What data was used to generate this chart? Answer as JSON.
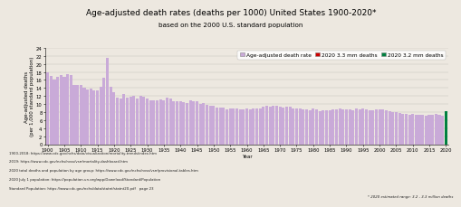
{
  "title": "Age-adjusted death rates (deaths per 1000) United States 1900-2020*",
  "subtitle": "based on the 2000 U.S. standard population",
  "xlabel": "Year",
  "ylabel": "Age-adjusted deaths\n(per 1,000 standard population)",
  "bar_color": "#c9aad8",
  "bar_color_2020_high": "#cc0000",
  "bar_color_2020_low": "#008040",
  "background_color": "#ede8e0",
  "legend_labels": [
    "Age-adjusted death rate",
    "2020 3.3 mm deaths",
    "2020 3.2 mm deaths"
  ],
  "legend_colors": [
    "#c9aad8",
    "#cc0000",
    "#008040"
  ],
  "years": [
    1900,
    1901,
    1902,
    1903,
    1904,
    1905,
    1906,
    1907,
    1908,
    1909,
    1910,
    1911,
    1912,
    1913,
    1914,
    1915,
    1916,
    1917,
    1918,
    1919,
    1920,
    1921,
    1922,
    1923,
    1924,
    1925,
    1926,
    1927,
    1928,
    1929,
    1930,
    1931,
    1932,
    1933,
    1934,
    1935,
    1936,
    1937,
    1938,
    1939,
    1940,
    1941,
    1942,
    1943,
    1944,
    1945,
    1946,
    1947,
    1948,
    1949,
    1950,
    1951,
    1952,
    1953,
    1954,
    1955,
    1956,
    1957,
    1958,
    1959,
    1960,
    1961,
    1962,
    1963,
    1964,
    1965,
    1966,
    1967,
    1968,
    1969,
    1970,
    1971,
    1972,
    1973,
    1974,
    1975,
    1976,
    1977,
    1978,
    1979,
    1980,
    1981,
    1982,
    1983,
    1984,
    1985,
    1986,
    1987,
    1988,
    1989,
    1990,
    1991,
    1992,
    1993,
    1994,
    1995,
    1996,
    1997,
    1998,
    1999,
    2000,
    2001,
    2002,
    2003,
    2004,
    2005,
    2006,
    2007,
    2008,
    2009,
    2010,
    2011,
    2012,
    2013,
    2014,
    2015,
    2016,
    2017,
    2018,
    2019,
    2020
  ],
  "values": [
    17.8,
    17.0,
    16.2,
    16.8,
    17.2,
    16.8,
    17.5,
    17.2,
    14.8,
    14.8,
    14.7,
    14.0,
    13.6,
    13.8,
    13.3,
    13.5,
    14.3,
    16.5,
    21.5,
    14.4,
    13.0,
    11.5,
    11.4,
    12.4,
    11.5,
    11.8,
    12.1,
    11.3,
    12.0,
    11.9,
    11.3,
    10.9,
    10.9,
    10.9,
    11.1,
    10.9,
    11.5,
    11.3,
    10.6,
    10.6,
    10.8,
    10.5,
    10.3,
    10.9,
    10.6,
    10.6,
    10.0,
    10.2,
    9.7,
    9.5,
    9.6,
    9.2,
    9.1,
    9.1,
    8.7,
    8.8,
    9.0,
    9.0,
    8.7,
    8.7,
    8.9,
    8.7,
    8.9,
    9.0,
    8.8,
    9.4,
    9.5,
    9.4,
    9.6,
    9.5,
    9.4,
    9.1,
    9.3,
    9.3,
    8.9,
    8.8,
    8.8,
    8.6,
    8.7,
    8.5,
    8.8,
    8.6,
    8.3,
    8.4,
    8.4,
    8.5,
    8.6,
    8.7,
    8.8,
    8.7,
    8.6,
    8.6,
    8.5,
    8.8,
    8.7,
    8.8,
    8.6,
    8.5,
    8.5,
    8.7,
    8.7,
    8.6,
    8.5,
    8.3,
    8.0,
    7.9,
    7.8,
    7.6,
    7.5,
    7.4,
    7.5,
    7.4,
    7.3,
    7.3,
    7.2,
    7.3,
    7.3,
    7.5,
    7.3,
    7.2,
    8.3
  ],
  "footnote_line1": "1900-2018: https://www.cdc.gov/nchs/data/visualization/mortality-trends/index.htm",
  "footnote_line2": "2019: https://www.cdc.gov/nchs/nvss/vsrr/mortality-dashboard.htm",
  "footnote_line3": "2020 total deaths and population by age group: https://www.cdc.gov/nchs/nvss/vsrr/provisional-tables.htm",
  "footnote_line4": "2020 July 1 population: https://population.un.org/wpp/Download/Standard/Population",
  "footnote_line5": "Standard Population: https://www.cdc.gov/nchs/data/statnt/statnt20.pdf   page 23",
  "footnote_right": "* 2020 estimated range: 3.2 - 3.3 million deaths",
  "ylim_max": 24,
  "yticks": [
    0,
    2,
    4,
    6,
    8,
    10,
    12,
    14,
    16,
    18,
    20,
    22,
    24
  ],
  "title_fontsize": 6.5,
  "subtitle_fontsize": 5.2,
  "axis_label_fontsize": 4.0,
  "tick_fontsize": 3.8,
  "legend_fontsize": 4.2,
  "footnote_fontsize": 2.8
}
